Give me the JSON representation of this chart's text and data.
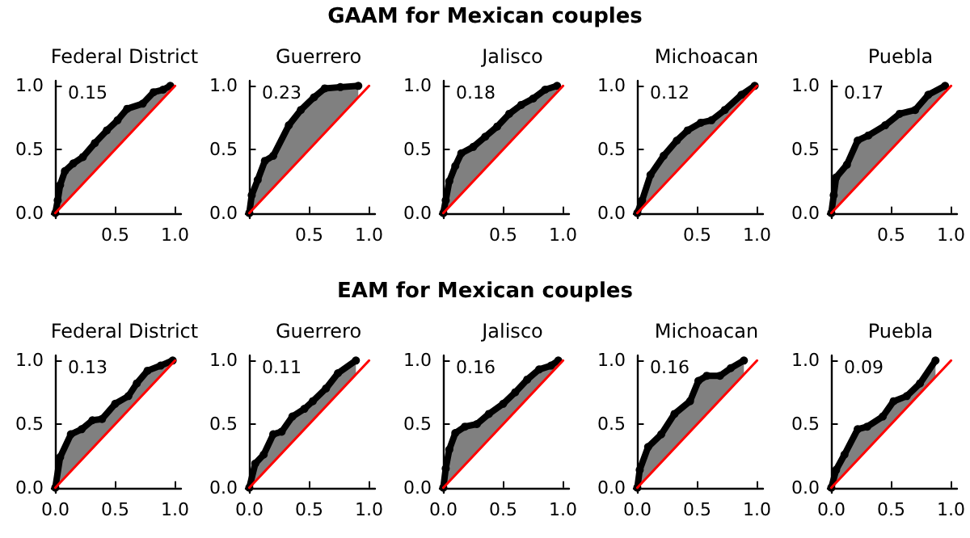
{
  "chart_data": [
    {
      "type": "other",
      "title": "GAAM for Mexican couples"
    },
    {
      "type": "line",
      "title": "Federal District",
      "annotations": [
        "0.15"
      ],
      "xlim": [
        -0.03,
        1.05
      ],
      "ylim": [
        -0.04,
        1.04
      ],
      "xticks": [
        {
          "value": 0.5,
          "label": "0.5"
        },
        {
          "value": 1,
          "label": "1.0"
        }
      ],
      "yticks": [
        {
          "value": 0,
          "label": "0.0"
        },
        {
          "value": 0.5,
          "label": "0.5"
        },
        {
          "value": 1,
          "label": "1.0"
        }
      ],
      "marker": "circle",
      "series": [
        {
          "color": "#000000",
          "x": [
            0,
            0.02,
            0.04,
            0.08,
            0.15,
            0.23,
            0.33,
            0.43,
            0.52,
            0.6,
            0.73,
            0.82,
            0.9,
            0.96
          ],
          "values": [
            0,
            0.1,
            0.22,
            0.33,
            0.39,
            0.44,
            0.55,
            0.65,
            0.73,
            0.82,
            0.86,
            0.95,
            0.97,
            1.0
          ],
          "lower": [
            0,
            0.02,
            0.04,
            0.08,
            0.15,
            0.23,
            0.33,
            0.43,
            0.52,
            0.6,
            0.73,
            0.82,
            0.9,
            0.96
          ],
          "upper": [
            0,
            0.1,
            0.22,
            0.33,
            0.39,
            0.44,
            0.55,
            0.65,
            0.73,
            0.82,
            0.86,
            0.95,
            0.97,
            1.0
          ]
        },
        {
          "color": "#ff0000",
          "marker": "none",
          "x": [
            0,
            1
          ],
          "values": [
            0,
            1
          ]
        }
      ]
    },
    {
      "type": "line",
      "title": "Guerrero",
      "annotations": [
        "0.23"
      ],
      "xlim": [
        -0.03,
        1.05
      ],
      "ylim": [
        -0.04,
        1.04
      ],
      "xticks": [
        {
          "value": 0.5,
          "label": "0.5"
        },
        {
          "value": 1,
          "label": "1.0"
        }
      ],
      "yticks": [
        {
          "value": 0,
          "label": "0.0"
        },
        {
          "value": 0.5,
          "label": "0.5"
        },
        {
          "value": 1,
          "label": "1.0"
        }
      ],
      "marker": "circle",
      "series": [
        {
          "color": "#000000",
          "x": [
            0,
            0.02,
            0.07,
            0.13,
            0.2,
            0.33,
            0.43,
            0.54,
            0.63,
            0.76,
            0.91
          ],
          "values": [
            0,
            0.14,
            0.26,
            0.41,
            0.45,
            0.69,
            0.81,
            0.91,
            0.98,
            0.99,
            1.0
          ],
          "lower": [
            0,
            0.02,
            0.07,
            0.13,
            0.2,
            0.33,
            0.43,
            0.54,
            0.63,
            0.76,
            0.91
          ],
          "upper": [
            0,
            0.14,
            0.26,
            0.41,
            0.45,
            0.69,
            0.81,
            0.91,
            0.98,
            0.99,
            1.0
          ]
        },
        {
          "color": "#ff0000",
          "marker": "none",
          "x": [
            0,
            1
          ],
          "values": [
            0,
            1
          ]
        }
      ]
    },
    {
      "type": "line",
      "title": "Jalisco",
      "annotations": [
        "0.18"
      ],
      "xlim": [
        -0.03,
        1.05
      ],
      "ylim": [
        -0.04,
        1.04
      ],
      "xticks": [
        {
          "value": 0.5,
          "label": "0.5"
        },
        {
          "value": 1,
          "label": "1.0"
        }
      ],
      "yticks": [
        {
          "value": 0,
          "label": "0.0"
        },
        {
          "value": 0.5,
          "label": "0.5"
        },
        {
          "value": 1,
          "label": "1.0"
        }
      ],
      "marker": "circle",
      "series": [
        {
          "color": "#000000",
          "x": [
            0,
            0.02,
            0.05,
            0.1,
            0.15,
            0.25,
            0.35,
            0.45,
            0.55,
            0.65,
            0.75,
            0.85,
            0.95
          ],
          "values": [
            0,
            0.1,
            0.25,
            0.37,
            0.47,
            0.52,
            0.6,
            0.68,
            0.78,
            0.85,
            0.9,
            0.97,
            1.0
          ],
          "lower": [
            0,
            0.02,
            0.05,
            0.1,
            0.15,
            0.25,
            0.35,
            0.45,
            0.55,
            0.65,
            0.75,
            0.85,
            0.95
          ],
          "upper": [
            0,
            0.1,
            0.25,
            0.37,
            0.47,
            0.52,
            0.6,
            0.68,
            0.78,
            0.85,
            0.9,
            0.97,
            1.0
          ]
        },
        {
          "color": "#ff0000",
          "marker": "none",
          "x": [
            0,
            1
          ],
          "values": [
            0,
            1
          ]
        }
      ]
    },
    {
      "type": "line",
      "title": "Michoacan",
      "annotations": [
        "0.12"
      ],
      "xlim": [
        -0.03,
        1.05
      ],
      "ylim": [
        -0.04,
        1.04
      ],
      "xticks": [
        {
          "value": 0.5,
          "label": "0.5"
        },
        {
          "value": 1,
          "label": "1.0"
        }
      ],
      "yticks": [
        {
          "value": 0,
          "label": "0.0"
        },
        {
          "value": 0.5,
          "label": "0.5"
        },
        {
          "value": 1,
          "label": "1.0"
        }
      ],
      "marker": "circle",
      "series": [
        {
          "color": "#000000",
          "x": [
            0,
            0.04,
            0.11,
            0.22,
            0.33,
            0.42,
            0.53,
            0.62,
            0.73,
            0.87,
            0.98
          ],
          "values": [
            0,
            0.1,
            0.3,
            0.45,
            0.57,
            0.65,
            0.71,
            0.73,
            0.81,
            0.93,
            1.0
          ],
          "lower": [
            0,
            0.04,
            0.11,
            0.22,
            0.33,
            0.42,
            0.53,
            0.62,
            0.73,
            0.87,
            0.98
          ],
          "upper": [
            0,
            0.1,
            0.3,
            0.45,
            0.57,
            0.65,
            0.71,
            0.73,
            0.81,
            0.93,
            1.0
          ]
        },
        {
          "color": "#ff0000",
          "marker": "none",
          "x": [
            0,
            1
          ],
          "values": [
            0,
            1
          ]
        }
      ]
    },
    {
      "type": "line",
      "title": "Puebla",
      "annotations": [
        "0.17"
      ],
      "xlim": [
        -0.03,
        1.05
      ],
      "ylim": [
        -0.04,
        1.04
      ],
      "xticks": [
        {
          "value": 0.5,
          "label": "0.5"
        },
        {
          "value": 1,
          "label": "1.0"
        }
      ],
      "yticks": [
        {
          "value": 0,
          "label": "0.0"
        },
        {
          "value": 0.5,
          "label": "0.5"
        },
        {
          "value": 1,
          "label": "1.0"
        }
      ],
      "marker": "circle",
      "series": [
        {
          "color": "#000000",
          "x": [
            0,
            0.02,
            0.04,
            0.13,
            0.22,
            0.31,
            0.45,
            0.57,
            0.7,
            0.81,
            0.95
          ],
          "values": [
            0,
            0.14,
            0.28,
            0.38,
            0.57,
            0.61,
            0.69,
            0.78,
            0.81,
            0.93,
            1.0
          ],
          "lower": [
            0,
            0.02,
            0.04,
            0.13,
            0.22,
            0.31,
            0.45,
            0.57,
            0.7,
            0.81,
            0.95
          ],
          "upper": [
            0,
            0.14,
            0.28,
            0.38,
            0.57,
            0.61,
            0.69,
            0.78,
            0.81,
            0.93,
            1.0
          ]
        },
        {
          "color": "#ff0000",
          "marker": "none",
          "x": [
            0,
            1
          ],
          "values": [
            0,
            1
          ]
        }
      ]
    },
    {
      "type": "other",
      "title": "EAM for Mexican couples"
    },
    {
      "type": "line",
      "title": "Federal District",
      "annotations": [
        "0.13"
      ],
      "xlim": [
        -0.03,
        1.05
      ],
      "ylim": [
        -0.04,
        1.04
      ],
      "xticks": [
        {
          "value": 0,
          "label": "0.0"
        },
        {
          "value": 0.5,
          "label": "0.5"
        },
        {
          "value": 1,
          "label": "1.0"
        }
      ],
      "yticks": [
        {
          "value": 0,
          "label": "0.0"
        },
        {
          "value": 0.5,
          "label": "0.5"
        },
        {
          "value": 1,
          "label": "1.0"
        }
      ],
      "marker": "circle",
      "series": [
        {
          "color": "#000000",
          "x": [
            0,
            0.04,
            0.13,
            0.22,
            0.31,
            0.39,
            0.5,
            0.61,
            0.68,
            0.77,
            0.88,
            0.98
          ],
          "values": [
            0,
            0.24,
            0.42,
            0.46,
            0.53,
            0.54,
            0.66,
            0.72,
            0.82,
            0.92,
            0.96,
            1.0
          ],
          "lower": [
            0,
            0.04,
            0.13,
            0.22,
            0.31,
            0.39,
            0.5,
            0.61,
            0.68,
            0.77,
            0.88,
            0.98
          ],
          "upper": [
            0,
            0.24,
            0.42,
            0.46,
            0.53,
            0.54,
            0.66,
            0.72,
            0.82,
            0.92,
            0.96,
            1.0
          ]
        },
        {
          "color": "#ff0000",
          "marker": "none",
          "x": [
            0,
            1
          ],
          "values": [
            0,
            1
          ]
        }
      ]
    },
    {
      "type": "line",
      "title": "Guerrero",
      "annotations": [
        "0.11"
      ],
      "xlim": [
        -0.03,
        1.05
      ],
      "ylim": [
        -0.04,
        1.04
      ],
      "xticks": [
        {
          "value": 0,
          "label": "0.0"
        },
        {
          "value": 0.5,
          "label": "0.5"
        },
        {
          "value": 1,
          "label": "1.0"
        }
      ],
      "yticks": [
        {
          "value": 0,
          "label": "0.0"
        },
        {
          "value": 0.5,
          "label": "0.5"
        },
        {
          "value": 1,
          "label": "1.0"
        }
      ],
      "marker": "circle",
      "series": [
        {
          "color": "#000000",
          "x": [
            0,
            0.05,
            0.12,
            0.2,
            0.27,
            0.36,
            0.46,
            0.53,
            0.64,
            0.74,
            0.89
          ],
          "values": [
            0,
            0.19,
            0.26,
            0.42,
            0.44,
            0.56,
            0.62,
            0.68,
            0.78,
            0.9,
            1.0
          ],
          "lower": [
            0,
            0.05,
            0.12,
            0.2,
            0.27,
            0.36,
            0.46,
            0.53,
            0.64,
            0.74,
            0.89
          ],
          "upper": [
            0,
            0.19,
            0.26,
            0.42,
            0.44,
            0.56,
            0.62,
            0.68,
            0.78,
            0.9,
            1.0
          ]
        },
        {
          "color": "#ff0000",
          "marker": "none",
          "x": [
            0,
            1
          ],
          "values": [
            0,
            1
          ]
        }
      ]
    },
    {
      "type": "line",
      "title": "Jalisco",
      "annotations": [
        "0.16"
      ],
      "xlim": [
        -0.03,
        1.05
      ],
      "ylim": [
        -0.04,
        1.04
      ],
      "xticks": [
        {
          "value": 0,
          "label": "0.0"
        },
        {
          "value": 0.5,
          "label": "0.5"
        },
        {
          "value": 1,
          "label": "1.0"
        }
      ],
      "yticks": [
        {
          "value": 0,
          "label": "0.0"
        },
        {
          "value": 0.5,
          "label": "0.5"
        },
        {
          "value": 1,
          "label": "1.0"
        }
      ],
      "marker": "circle",
      "series": [
        {
          "color": "#000000",
          "x": [
            0,
            0.02,
            0.05,
            0.1,
            0.18,
            0.28,
            0.38,
            0.5,
            0.6,
            0.7,
            0.8,
            0.9,
            0.96
          ],
          "values": [
            0,
            0.15,
            0.3,
            0.43,
            0.48,
            0.5,
            0.58,
            0.66,
            0.75,
            0.85,
            0.93,
            0.96,
            1.0
          ],
          "lower": [
            0,
            0.02,
            0.05,
            0.1,
            0.18,
            0.28,
            0.38,
            0.5,
            0.6,
            0.7,
            0.8,
            0.9,
            0.96
          ],
          "upper": [
            0,
            0.15,
            0.3,
            0.43,
            0.48,
            0.5,
            0.58,
            0.66,
            0.75,
            0.85,
            0.93,
            0.96,
            1.0
          ]
        },
        {
          "color": "#ff0000",
          "marker": "none",
          "x": [
            0,
            1
          ],
          "values": [
            0,
            1
          ]
        }
      ]
    },
    {
      "type": "line",
      "title": "Michoacan",
      "annotations": [
        "0.16"
      ],
      "xlim": [
        -0.03,
        1.05
      ],
      "ylim": [
        -0.04,
        1.04
      ],
      "xticks": [
        {
          "value": 0,
          "label": "0.0"
        },
        {
          "value": 0.5,
          "label": "0.5"
        },
        {
          "value": 1,
          "label": "1.0"
        }
      ],
      "yticks": [
        {
          "value": 0,
          "label": "0.0"
        },
        {
          "value": 0.5,
          "label": "0.5"
        },
        {
          "value": 1,
          "label": "1.0"
        }
      ],
      "marker": "circle",
      "series": [
        {
          "color": "#000000",
          "x": [
            0,
            0.02,
            0.09,
            0.2,
            0.31,
            0.44,
            0.51,
            0.58,
            0.69,
            0.78,
            0.89
          ],
          "values": [
            0,
            0.14,
            0.32,
            0.42,
            0.58,
            0.68,
            0.84,
            0.88,
            0.88,
            0.94,
            1.0
          ],
          "lower": [
            0,
            0.02,
            0.09,
            0.2,
            0.31,
            0.44,
            0.51,
            0.58,
            0.69,
            0.78,
            0.89
          ],
          "upper": [
            0,
            0.14,
            0.32,
            0.42,
            0.58,
            0.68,
            0.84,
            0.88,
            0.88,
            0.94,
            1.0
          ]
        },
        {
          "color": "#ff0000",
          "marker": "none",
          "x": [
            0,
            1
          ],
          "values": [
            0,
            1
          ]
        }
      ]
    },
    {
      "type": "line",
      "title": "Puebla",
      "annotations": [
        "0.09"
      ],
      "xlim": [
        -0.03,
        1.05
      ],
      "ylim": [
        -0.04,
        1.04
      ],
      "xticks": [
        {
          "value": 0,
          "label": "0.0"
        },
        {
          "value": 0.5,
          "label": "0.5"
        },
        {
          "value": 1,
          "label": "1.0"
        }
      ],
      "yticks": [
        {
          "value": 0,
          "label": "0.0"
        },
        {
          "value": 0.5,
          "label": "0.5"
        },
        {
          "value": 1,
          "label": "1.0"
        }
      ],
      "marker": "circle",
      "series": [
        {
          "color": "#000000",
          "x": [
            0,
            0.04,
            0.11,
            0.22,
            0.3,
            0.43,
            0.52,
            0.63,
            0.74,
            0.87
          ],
          "values": [
            0,
            0.14,
            0.26,
            0.46,
            0.48,
            0.56,
            0.68,
            0.72,
            0.82,
            1.0
          ],
          "lower": [
            0,
            0.04,
            0.11,
            0.22,
            0.3,
            0.43,
            0.52,
            0.63,
            0.74,
            0.87
          ],
          "upper": [
            0,
            0.14,
            0.26,
            0.46,
            0.48,
            0.56,
            0.68,
            0.72,
            0.82,
            1.0
          ]
        },
        {
          "color": "#ff0000",
          "marker": "none",
          "x": [
            0,
            1
          ],
          "values": [
            0,
            1
          ]
        }
      ]
    }
  ]
}
